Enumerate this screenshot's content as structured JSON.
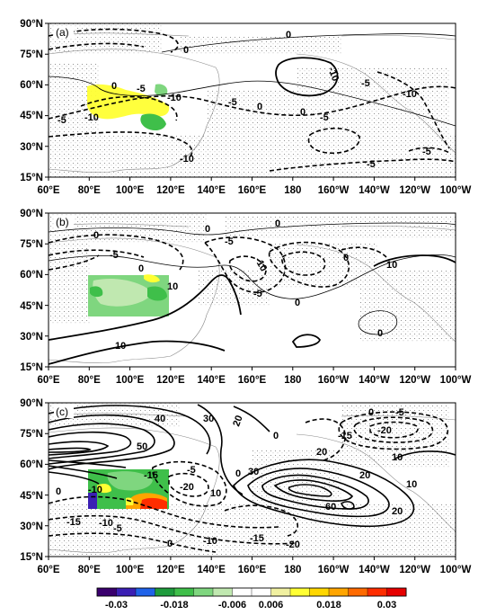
{
  "panels": [
    {
      "label": "(a)",
      "lat_ticks": [
        "90°N",
        "75°N",
        "60°N",
        "45°N",
        "30°N",
        "15°N"
      ],
      "lon_ticks": [
        "60°E",
        "80°E",
        "100°E",
        "120°E",
        "140°E",
        "160°E",
        "180",
        "160°W",
        "140°W",
        "120°W",
        "100°W"
      ],
      "contour_labels": [
        "0",
        "0",
        "0",
        "0",
        "0",
        "-5",
        "-5",
        "-5",
        "-5",
        "-5",
        "-5",
        "-5",
        "-10",
        "-10",
        "-10",
        "-10",
        "-10"
      ]
    },
    {
      "label": "(b)",
      "lat_ticks": [
        "90°N",
        "75°N",
        "60°N",
        "45°N",
        "30°N",
        "15°N"
      ],
      "lon_ticks": [
        "60°E",
        "80°E",
        "100°E",
        "120°E",
        "140°E",
        "160°E",
        "180",
        "160°W",
        "140°W",
        "120°W",
        "100°W"
      ],
      "contour_labels": [
        "0",
        "0",
        "0",
        "0",
        "0",
        "0",
        "0",
        "-5",
        "-5",
        "-5",
        "-10",
        "10",
        "10",
        "10"
      ]
    },
    {
      "label": "(c)",
      "lat_ticks": [
        "90°N",
        "75°N",
        "60°N",
        "45°N",
        "30°N",
        "15°N"
      ],
      "lon_ticks": [
        "60°E",
        "80°E",
        "100°E",
        "120°E",
        "140°E",
        "160°E",
        "180",
        "160°W",
        "140°W",
        "120°W",
        "100°W"
      ],
      "contour_labels": [
        "40",
        "30",
        "20",
        "50",
        "0",
        "0",
        "0",
        "0",
        "0",
        "-5",
        "-5",
        "-5",
        "-10",
        "-10",
        "-10",
        "-15",
        "-15",
        "-15",
        "-15",
        "-20",
        "-20",
        "-20",
        "10",
        "10",
        "10",
        "20",
        "20",
        "20",
        "30",
        "60"
      ]
    }
  ],
  "colorbar": {
    "ticks": [
      "-0.03",
      "-0.018",
      "-0.006",
      "0.006",
      "0.018",
      "0.03"
    ],
    "colors": [
      "#3a006e",
      "#3b1fb4",
      "#1f62e8",
      "#1e9b3c",
      "#3fbf4a",
      "#7fd67f",
      "#c0e8b0",
      "#ffffff",
      "#ffffff",
      "#f0f0a0",
      "#ffff33",
      "#ffd700",
      "#ffa500",
      "#ff6a00",
      "#ff2d00",
      "#e60000"
    ]
  }
}
